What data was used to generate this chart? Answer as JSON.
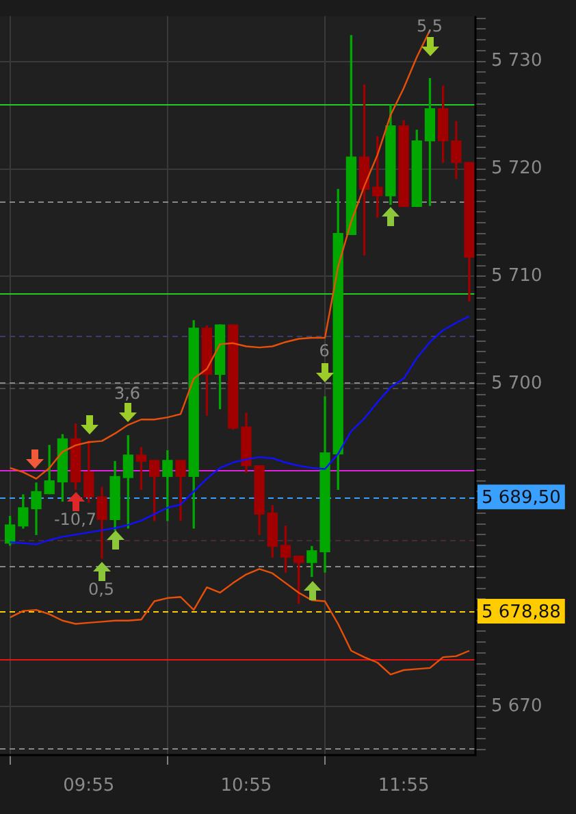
{
  "chart_data": {
    "type": "candlestick",
    "x": [
      9.4167,
      9.5,
      9.5833,
      9.6667,
      9.75,
      9.8333,
      9.9167,
      10,
      10.0833,
      10.1667,
      10.25,
      10.3333,
      10.4167,
      10.5,
      10.5833,
      10.6667,
      10.75,
      10.8333,
      10.9167,
      11,
      11.0833,
      11.1667,
      11.25,
      11.3333,
      11.4167,
      11.5,
      11.5833,
      11.6667,
      11.75,
      11.8333,
      11.9167,
      12,
      12.0833,
      12.1667,
      12.25,
      12.3333
    ],
    "ohlc": [
      [
        5685.2,
        5687.7,
        5685.0,
        5686.9
      ],
      [
        5686.8,
        5689.7,
        5686.6,
        5688.5
      ],
      [
        5688.4,
        5690.8,
        5686.0,
        5690.0
      ],
      [
        5689.8,
        5694.3,
        5689.8,
        5691.0
      ],
      [
        5690.9,
        5695.3,
        5689.1,
        5694.9
      ],
      [
        5694.9,
        5696.3,
        5690.2,
        5690.9
      ],
      [
        5691.8,
        5694.7,
        5689.0,
        5689.5
      ],
      [
        5689.5,
        5690.4,
        5683.8,
        5687.4
      ],
      [
        5687.4,
        5692.8,
        5686.4,
        5691.4
      ],
      [
        5691.3,
        5695.2,
        5686.6,
        5693.4
      ],
      [
        5693.4,
        5694.1,
        5690.2,
        5692.8
      ],
      [
        5692.9,
        5692.9,
        5687.3,
        5691.4
      ],
      [
        5691.4,
        5693.8,
        5687.3,
        5692.9
      ],
      [
        5692.9,
        5692.9,
        5687.3,
        5691.4
      ],
      [
        5691.4,
        5705.9,
        5686.6,
        5705.2
      ],
      [
        5705.2,
        5705.4,
        5697.1,
        5700.9
      ],
      [
        5700.9,
        5705.5,
        5697.7,
        5705.5
      ],
      [
        5705.5,
        5705.5,
        5695.8,
        5695.9
      ],
      [
        5696.0,
        5697.3,
        5691.8,
        5692.4
      ],
      [
        5692.4,
        5692.4,
        5686.0,
        5687.9
      ],
      [
        5688.0,
        5688.7,
        5683.9,
        5684.9
      ],
      [
        5685.0,
        5686.8,
        5682.5,
        5683.9
      ],
      [
        5684.0,
        5684.0,
        5679.6,
        5683.4
      ],
      [
        5683.4,
        5684.9,
        5682.1,
        5684.5
      ],
      [
        5684.4,
        5698.8,
        5682.5,
        5693.6
      ],
      [
        5693.5,
        5718.1,
        5690.2,
        5714.0
      ],
      [
        5713.9,
        5732.4,
        5713.9,
        5721.1
      ],
      [
        5721.1,
        5727.8,
        5712.0,
        5718.1
      ],
      [
        5718.3,
        5723.0,
        5715.5,
        5717.5
      ],
      [
        5717.5,
        5725.9,
        5716.7,
        5724.0
      ],
      [
        5724.0,
        5724.5,
        5716.5,
        5716.5
      ],
      [
        5716.5,
        5723.6,
        5716.5,
        5722.6
      ],
      [
        5722.6,
        5728.4,
        5716.6,
        5725.6
      ],
      [
        5725.6,
        5727.7,
        5720.6,
        5722.6
      ],
      [
        5722.6,
        5724.4,
        5719.1,
        5720.6
      ],
      [
        5720.6,
        5720.6,
        5707.7,
        5711.8
      ]
    ],
    "colors": [
      "#00a800",
      "#00a800",
      "#00a800",
      "#00a800",
      "#00a800",
      "#a00000",
      "#a00000",
      "#a00000",
      "#00a800",
      "#00a800",
      "#a00000",
      "#a00000",
      "#00a800",
      "#a00000",
      "#00a800",
      "#a00000",
      "#00a800",
      "#a00000",
      "#a00000",
      "#a00000",
      "#a00000",
      "#a00000",
      "#a00000",
      "#00a800",
      "#00a800",
      "#00a800",
      "#00a800",
      "#a00000",
      "#a00000",
      "#00a800",
      "#a00000",
      "#00a800",
      "#00a800",
      "#a00000",
      "#a00000",
      "#a00000"
    ],
    "series": [
      {
        "type": "line",
        "color": "#e8500a",
        "values": [
          5692.2,
          5691.8,
          5691.2,
          5692.2,
          5693.7,
          5694.3,
          5694.6,
          5694.7,
          5695.4,
          5696.2,
          5696.7,
          5696.7,
          5696.9,
          5697.2,
          5700.5,
          5701.4,
          5703.7,
          5703.8,
          5703.5,
          5703.4,
          5703.5,
          5703.9,
          5704.2,
          5704.3,
          5704.3,
          5710.9,
          5715.1,
          5718.4,
          5721.3,
          5725.0,
          5727.5,
          5730.4,
          5732.9,
          null,
          null,
          null
        ]
      },
      {
        "type": "line",
        "color": "#e8500a",
        "values": [
          5678.3,
          5678.9,
          5679.0,
          5678.6,
          5678.0,
          5677.7,
          5677.8,
          5677.9,
          5678.0,
          5678.0,
          5678.1,
          5679.8,
          5680.1,
          5680.2,
          5679.0,
          5681.1,
          5680.6,
          5681.5,
          5682.3,
          5682.8,
          5682.4,
          5681.5,
          5680.6,
          5679.9,
          5679.8,
          5677.7,
          5675.2,
          5674.6,
          5674.1,
          5673.0,
          5673.4,
          5673.5,
          5673.6,
          5674.6,
          5674.7,
          5675.2
        ]
      },
      {
        "type": "line",
        "color": "#1010ff",
        "values": [
          5685.3,
          5685.2,
          5685.1,
          5685.5,
          5685.8,
          5686.0,
          5686.2,
          5686.4,
          5686.6,
          5686.9,
          5687.3,
          5687.9,
          5688.5,
          5688.8,
          5690.0,
          5691.2,
          5692.2,
          5692.7,
          5693.0,
          5693.2,
          5693.1,
          5692.7,
          5692.4,
          5692.2,
          5692.1,
          5693.5,
          5695.6,
          5696.8,
          5698.3,
          5699.7,
          5700.5,
          5702.4,
          5703.9,
          5705.0,
          5705.7,
          5706.3
        ]
      }
    ],
    "xlim": [
      9.353,
      12.368
    ],
    "xticks": [
      {
        "value": 9.9167,
        "label": "09:55"
      },
      {
        "value": 10.9167,
        "label": "10:55"
      },
      {
        "value": 11.9167,
        "label": "11:55"
      }
    ],
    "ylim": [
      5665.5,
      5734.2
    ],
    "yticks": [
      {
        "value": 5666,
        "label": null
      },
      {
        "value": 5667,
        "label": null
      },
      {
        "value": 5668,
        "label": null
      },
      {
        "value": 5669,
        "label": null
      },
      {
        "value": 5670,
        "label": "5 670"
      },
      {
        "value": 5671,
        "label": null
      },
      {
        "value": 5672,
        "label": null
      },
      {
        "value": 5673,
        "label": null
      },
      {
        "value": 5674,
        "label": null
      },
      {
        "value": 5675,
        "label": null
      },
      {
        "value": 5676,
        "label": null
      },
      {
        "value": 5677,
        "label": null
      },
      {
        "value": 5678,
        "label": null
      },
      {
        "value": 5679,
        "label": null
      },
      {
        "value": 5680,
        "label": null
      },
      {
        "value": 5681,
        "label": null
      },
      {
        "value": 5682,
        "label": null
      },
      {
        "value": 5683,
        "label": null
      },
      {
        "value": 5684,
        "label": null
      },
      {
        "value": 5685,
        "label": null
      },
      {
        "value": 5686,
        "label": null
      },
      {
        "value": 5687,
        "label": null
      },
      {
        "value": 5688,
        "label": null
      },
      {
        "value": 5689,
        "label": null
      },
      {
        "value": 5690,
        "label": null
      },
      {
        "value": 5691,
        "label": null
      },
      {
        "value": 5692,
        "label": null
      },
      {
        "value": 5693,
        "label": null
      },
      {
        "value": 5694,
        "label": null
      },
      {
        "value": 5695,
        "label": null
      },
      {
        "value": 5696,
        "label": null
      },
      {
        "value": 5697,
        "label": null
      },
      {
        "value": 5698,
        "label": null
      },
      {
        "value": 5699,
        "label": null
      },
      {
        "value": 5700,
        "label": "5 700"
      },
      {
        "value": 5701,
        "label": null
      },
      {
        "value": 5702,
        "label": null
      },
      {
        "value": 5703,
        "label": null
      },
      {
        "value": 5704,
        "label": null
      },
      {
        "value": 5705,
        "label": null
      },
      {
        "value": 5706,
        "label": null
      },
      {
        "value": 5707,
        "label": null
      },
      {
        "value": 5708,
        "label": null
      },
      {
        "value": 5709,
        "label": null
      },
      {
        "value": 5710,
        "label": "5 710"
      },
      {
        "value": 5711,
        "label": null
      },
      {
        "value": 5712,
        "label": null
      },
      {
        "value": 5713,
        "label": null
      },
      {
        "value": 5714,
        "label": null
      },
      {
        "value": 5715,
        "label": null
      },
      {
        "value": 5716,
        "label": null
      },
      {
        "value": 5717,
        "label": null
      },
      {
        "value": 5718,
        "label": null
      },
      {
        "value": 5719,
        "label": null
      },
      {
        "value": 5720,
        "label": "5 720"
      },
      {
        "value": 5721,
        "label": null
      },
      {
        "value": 5722,
        "label": null
      },
      {
        "value": 5723,
        "label": null
      },
      {
        "value": 5724,
        "label": null
      },
      {
        "value": 5725,
        "label": null
      },
      {
        "value": 5726,
        "label": null
      },
      {
        "value": 5727,
        "label": null
      },
      {
        "value": 5728,
        "label": null
      },
      {
        "value": 5729,
        "label": null
      },
      {
        "value": 5730,
        "label": "5 730"
      },
      {
        "value": 5731,
        "label": null
      },
      {
        "value": 5732,
        "label": null
      },
      {
        "value": 5733,
        "label": null
      },
      {
        "value": 5734,
        "label": null
      }
    ],
    "ref_lines": [
      {
        "axis": "y",
        "value": 5726.0,
        "color": "#22cc22",
        "line_style": "solid"
      },
      {
        "axis": "y",
        "value": 5717.0,
        "color": "#888888",
        "line_style": "dashed"
      },
      {
        "axis": "y",
        "value": 5708.4,
        "color": "#22cc22",
        "line_style": "solid"
      },
      {
        "axis": "y",
        "value": 5704.5,
        "color": "#3c3c6a",
        "line_style": "dashed"
      },
      {
        "axis": "y",
        "value": 5700.2,
        "color": "#888888",
        "line_style": "dashed"
      },
      {
        "axis": "y",
        "value": 5699.7,
        "color": "#4a4a4a",
        "line_style": "dashed"
      },
      {
        "axis": "y",
        "value": 5692.0,
        "color": "#e020e0",
        "line_style": "solid"
      },
      {
        "axis": "y",
        "value": 5689.5,
        "label": "5 689,50",
        "color": "#3aa0ff",
        "line_style": "dashed"
      },
      {
        "axis": "y",
        "value": 5685.5,
        "color": "#4a2a32",
        "line_style": "dashed"
      },
      {
        "axis": "y",
        "value": 5683.1,
        "color": "#888888",
        "line_style": "dashed"
      },
      {
        "axis": "y",
        "value": 5678.88,
        "label": "5 678,88",
        "color": "#ffcc00",
        "line_style": "dashed"
      },
      {
        "axis": "y",
        "value": 5674.4,
        "color": "#ee1111",
        "line_style": "solid"
      },
      {
        "axis": "y",
        "value": 5666.2,
        "color": "#888888",
        "line_style": "dashed"
      }
    ],
    "annotations": [
      "-10,7",
      "0,5",
      "3,6",
      "6",
      "5,5"
    ],
    "grid": true,
    "legend": false
  }
}
